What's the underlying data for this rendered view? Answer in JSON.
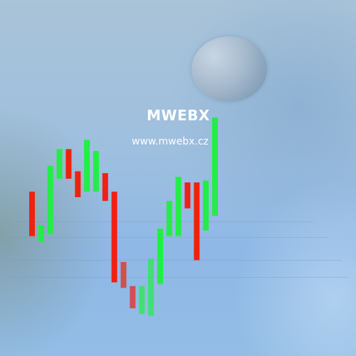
{
  "brand": {
    "name": "MWEBX",
    "url": "www.mwebx.cz"
  },
  "colors": {
    "up": "#22ee44",
    "down": "#ee2211"
  },
  "chart_data": {
    "type": "bar",
    "series": [
      {
        "color": "down",
        "low": 0.34,
        "high": 0.58
      },
      {
        "color": "up",
        "low": 0.31,
        "high": 0.4
      },
      {
        "color": "up",
        "low": 0.35,
        "high": 0.72
      },
      {
        "color": "up",
        "low": 0.65,
        "high": 0.81
      },
      {
        "color": "down",
        "low": 0.65,
        "high": 0.81
      },
      {
        "color": "down",
        "low": 0.55,
        "high": 0.69
      },
      {
        "color": "up",
        "low": 0.58,
        "high": 0.86
      },
      {
        "color": "up",
        "low": 0.58,
        "high": 0.8
      },
      {
        "color": "down",
        "low": 0.53,
        "high": 0.68
      },
      {
        "color": "down",
        "low": 0.09,
        "high": 0.58
      },
      {
        "color": "down",
        "low": 0.06,
        "high": 0.2
      },
      {
        "color": "down",
        "low": -0.05,
        "high": 0.07
      },
      {
        "color": "up",
        "low": -0.08,
        "high": 0.07
      },
      {
        "color": "up",
        "low": -0.09,
        "high": 0.22
      },
      {
        "color": "up",
        "low": 0.08,
        "high": 0.38
      },
      {
        "color": "up",
        "low": 0.34,
        "high": 0.53
      },
      {
        "color": "up",
        "low": 0.34,
        "high": 0.66
      },
      {
        "color": "down",
        "low": 0.49,
        "high": 0.63
      },
      {
        "color": "down",
        "low": 0.21,
        "high": 0.63
      },
      {
        "color": "up",
        "low": 0.37,
        "high": 0.64
      },
      {
        "color": "up",
        "low": 0.45,
        "high": 0.98
      }
    ]
  }
}
